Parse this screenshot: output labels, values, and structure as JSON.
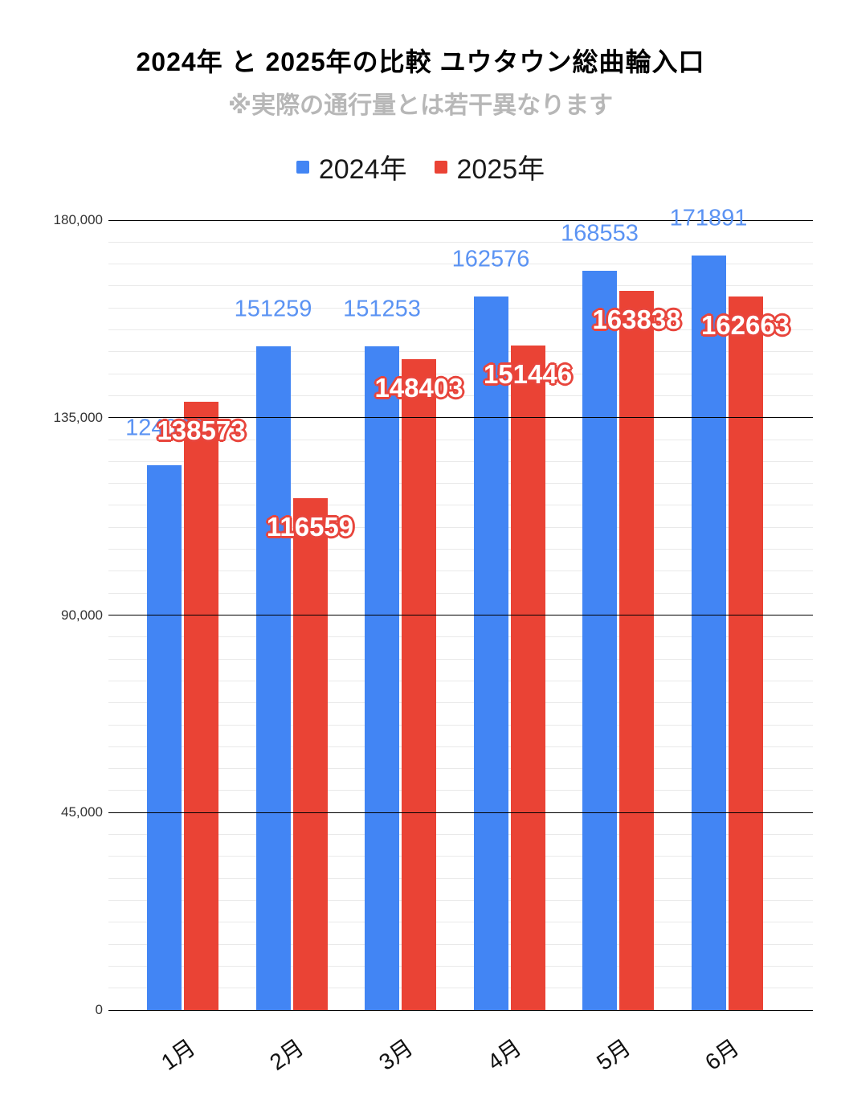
{
  "title": "2024年 と 2025年の比較  ユウタウン総曲輪入口",
  "subtitle": "※実際の通行量とは若干異なります",
  "legend": {
    "items": [
      {
        "label": "2024年",
        "color": "#4285F4"
      },
      {
        "label": "2025年",
        "color": "#EA4335"
      }
    ]
  },
  "colors": {
    "series_2024": "#4285F4",
    "series_2025": "#EA4335",
    "label_2024_text": "#5b93f3",
    "label_2025_fill": "#ffffff",
    "label_2025_outline": "#e8453c",
    "major_gridline": "#000000",
    "minor_gridline": "#e9e9e9",
    "subtitle_text": "#b7b7b7"
  },
  "chart_data": {
    "type": "bar",
    "categories": [
      "1月",
      "2月",
      "3月",
      "4月",
      "5月",
      "6月"
    ],
    "series": [
      {
        "name": "2024年",
        "color": "#4285F4",
        "values": [
          124066,
          151259,
          151253,
          162576,
          168553,
          171891
        ],
        "labels": [
          "124066",
          "151259",
          "151253",
          "162576",
          "168553",
          "171891"
        ]
      },
      {
        "name": "2025年",
        "color": "#EA4335",
        "values": [
          138573,
          116559,
          148403,
          151446,
          163838,
          162663
        ],
        "labels": [
          "138573",
          "116559",
          "148403",
          "151446",
          "163838",
          "162663"
        ]
      }
    ],
    "xlabel": "",
    "ylabel": "",
    "ylim": [
      0,
      180000
    ],
    "y_major_step": 45000,
    "y_minor_step": 5000,
    "y_tick_labels": [
      "0",
      "45,000",
      "90,000",
      "135,000",
      "180,000"
    ],
    "grid": "on",
    "legend_position": "top",
    "note": "※実際の通行量とは若干異なります"
  }
}
